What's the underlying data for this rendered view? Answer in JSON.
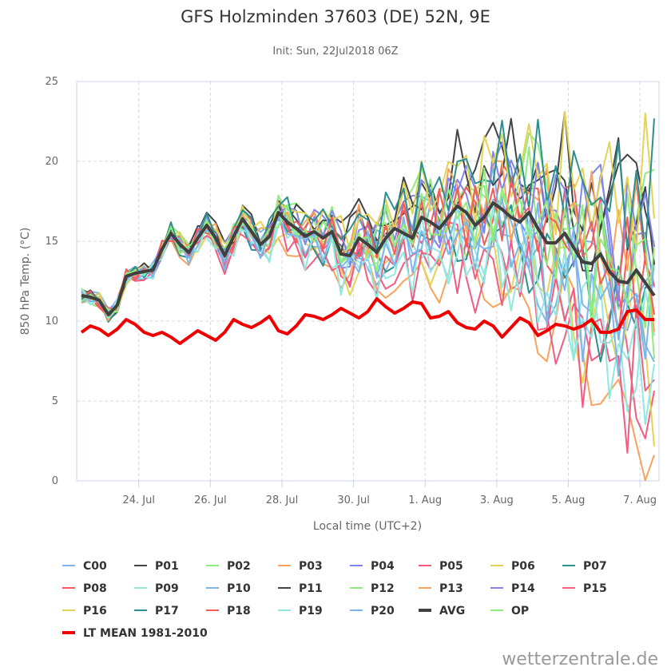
{
  "chart_data": {
    "type": "line",
    "title": "GFS Holzminden 37603 (DE) 52N, 9E",
    "subtitle": "Init: Sun, 22Jul2018 06Z",
    "ylabel": "850 hPa Temp. (°C)",
    "xlabel": "Local time (UTC+2)",
    "ylim": [
      0,
      25
    ],
    "y_ticks": [
      0,
      5,
      10,
      15,
      20,
      25
    ],
    "xlim": [
      0,
      80
    ],
    "x_ticks": [
      {
        "x": 8,
        "label": "24. Jul"
      },
      {
        "x": 18,
        "label": "26. Jul"
      },
      {
        "x": 28,
        "label": "28. Jul"
      },
      {
        "x": 38,
        "label": "30. Jul"
      },
      {
        "x": 48,
        "label": "1. Aug"
      },
      {
        "x": 58,
        "label": "3. Aug"
      },
      {
        "x": 68,
        "label": "5. Aug"
      },
      {
        "x": 78,
        "label": "7. Aug"
      }
    ],
    "grid": true,
    "legend_position": "bottom",
    "credit": "wetterzentrale.de",
    "base_series": [
      11.6,
      11.5,
      11.3,
      10.4,
      11.0,
      12.8,
      13.0,
      13.1,
      13.2,
      14.5,
      15.5,
      14.8,
      14.3,
      15.2,
      16.0,
      15.2,
      14.1,
      15.3,
      16.4,
      15.6,
      14.8,
      15.3,
      16.8,
      16.2,
      15.8,
      15.3,
      15.6,
      15.2,
      15.6,
      14.2,
      14.1,
      15.2,
      14.8,
      14.3,
      15.2,
      15.8,
      15.5,
      15.2,
      16.5,
      16.2,
      15.8,
      16.5,
      17.2,
      16.8,
      16.0,
      16.5,
      17.4,
      17.0,
      16.5,
      16.2,
      16.8,
      15.8,
      14.9,
      14.9,
      15.5,
      14.6,
      13.7,
      13.6,
      14.2,
      13.1,
      12.5,
      12.4,
      13.2,
      12.4,
      11.6
    ],
    "lt_mean": [
      9.3,
      9.7,
      9.5,
      9.1,
      9.5,
      10.1,
      9.8,
      9.3,
      9.1,
      9.3,
      9.0,
      8.6,
      9.0,
      9.4,
      9.1,
      8.8,
      9.3,
      10.1,
      9.8,
      9.6,
      9.9,
      10.3,
      9.4,
      9.2,
      9.7,
      10.4,
      10.3,
      10.1,
      10.4,
      10.8,
      10.5,
      10.2,
      10.6,
      11.4,
      10.9,
      10.5,
      10.8,
      11.2,
      11.1,
      10.2,
      10.3,
      10.6,
      9.9,
      9.6,
      9.5,
      10.0,
      9.7,
      9.0,
      9.6,
      10.2,
      9.9,
      9.1,
      9.4,
      9.8,
      9.7,
      9.5,
      9.7,
      10.1,
      9.3,
      9.3,
      9.5,
      10.6,
      10.7,
      10.1,
      10.1
    ],
    "series": [
      {
        "name": "C00",
        "color": "#7cb5ec",
        "end_offset": -2.0
      },
      {
        "name": "P01",
        "color": "#434348",
        "end_offset": 4.5
      },
      {
        "name": "P02",
        "color": "#90ed7d",
        "end_offset": 3.0
      },
      {
        "name": "P03",
        "color": "#f7a35c",
        "end_offset": -8.5
      },
      {
        "name": "P04",
        "color": "#8085e9",
        "end_offset": 2.0
      },
      {
        "name": "P05",
        "color": "#f15c80",
        "end_offset": -6.0
      },
      {
        "name": "P06",
        "color": "#e4d354",
        "end_offset": -4.5
      },
      {
        "name": "P07",
        "color": "#2b908f",
        "end_offset": -2.5
      },
      {
        "name": "P08",
        "color": "#f45b5b",
        "end_offset": 1.5
      },
      {
        "name": "P09",
        "color": "#91e8e1",
        "end_offset": -5.0
      },
      {
        "name": "P10",
        "color": "#7cb5ec",
        "end_offset": -1.0
      },
      {
        "name": "P11",
        "color": "#434348",
        "end_offset": 5.0
      },
      {
        "name": "P12",
        "color": "#90ed7d",
        "end_offset": 1.0
      },
      {
        "name": "P13",
        "color": "#f7a35c",
        "end_offset": 2.5
      },
      {
        "name": "P14",
        "color": "#8085e9",
        "end_offset": 3.5
      },
      {
        "name": "P15",
        "color": "#f15c80",
        "end_offset": -6.5
      },
      {
        "name": "P16",
        "color": "#e4d354",
        "end_offset": 6.0
      },
      {
        "name": "P17",
        "color": "#2b908f",
        "end_offset": 5.5
      },
      {
        "name": "P18",
        "color": "#f45b5b",
        "end_offset": 0.5
      },
      {
        "name": "P19",
        "color": "#91e8e1",
        "end_offset": -5.5
      },
      {
        "name": "P20",
        "color": "#7cb5ec",
        "end_offset": -3.0
      },
      {
        "name": "AVG",
        "color": "#404040",
        "end_offset": 0
      },
      {
        "name": "OP",
        "color": "#90ed7d",
        "end_offset": 0.5
      },
      {
        "name": "LT MEAN 1981-2010",
        "color": "#ee0000"
      }
    ]
  }
}
